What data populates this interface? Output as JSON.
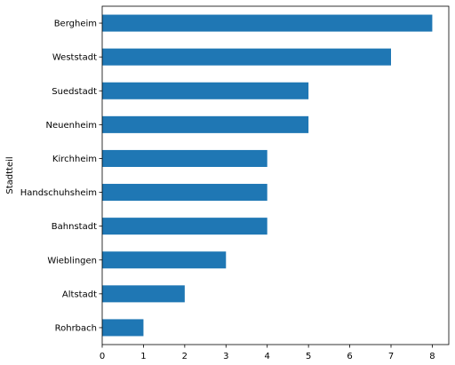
{
  "chart_data": {
    "type": "bar",
    "orientation": "horizontal",
    "categories": [
      "Rohrbach",
      "Altstadt",
      "Wieblingen",
      "Bahnstadt",
      "Handschuhsheim",
      "Kirchheim",
      "Neuenheim",
      "Suedstadt",
      "Weststadt",
      "Bergheim"
    ],
    "values": [
      1,
      2,
      3,
      4,
      4,
      4,
      5,
      5,
      7,
      8
    ],
    "xlabel": "",
    "ylabel": "Stadtteil",
    "xlim": [
      0,
      8.4
    ],
    "xticks": [
      0,
      1,
      2,
      3,
      4,
      5,
      6,
      7,
      8
    ],
    "grid": false,
    "legend": "none",
    "bar_color": "#1f77b4"
  }
}
